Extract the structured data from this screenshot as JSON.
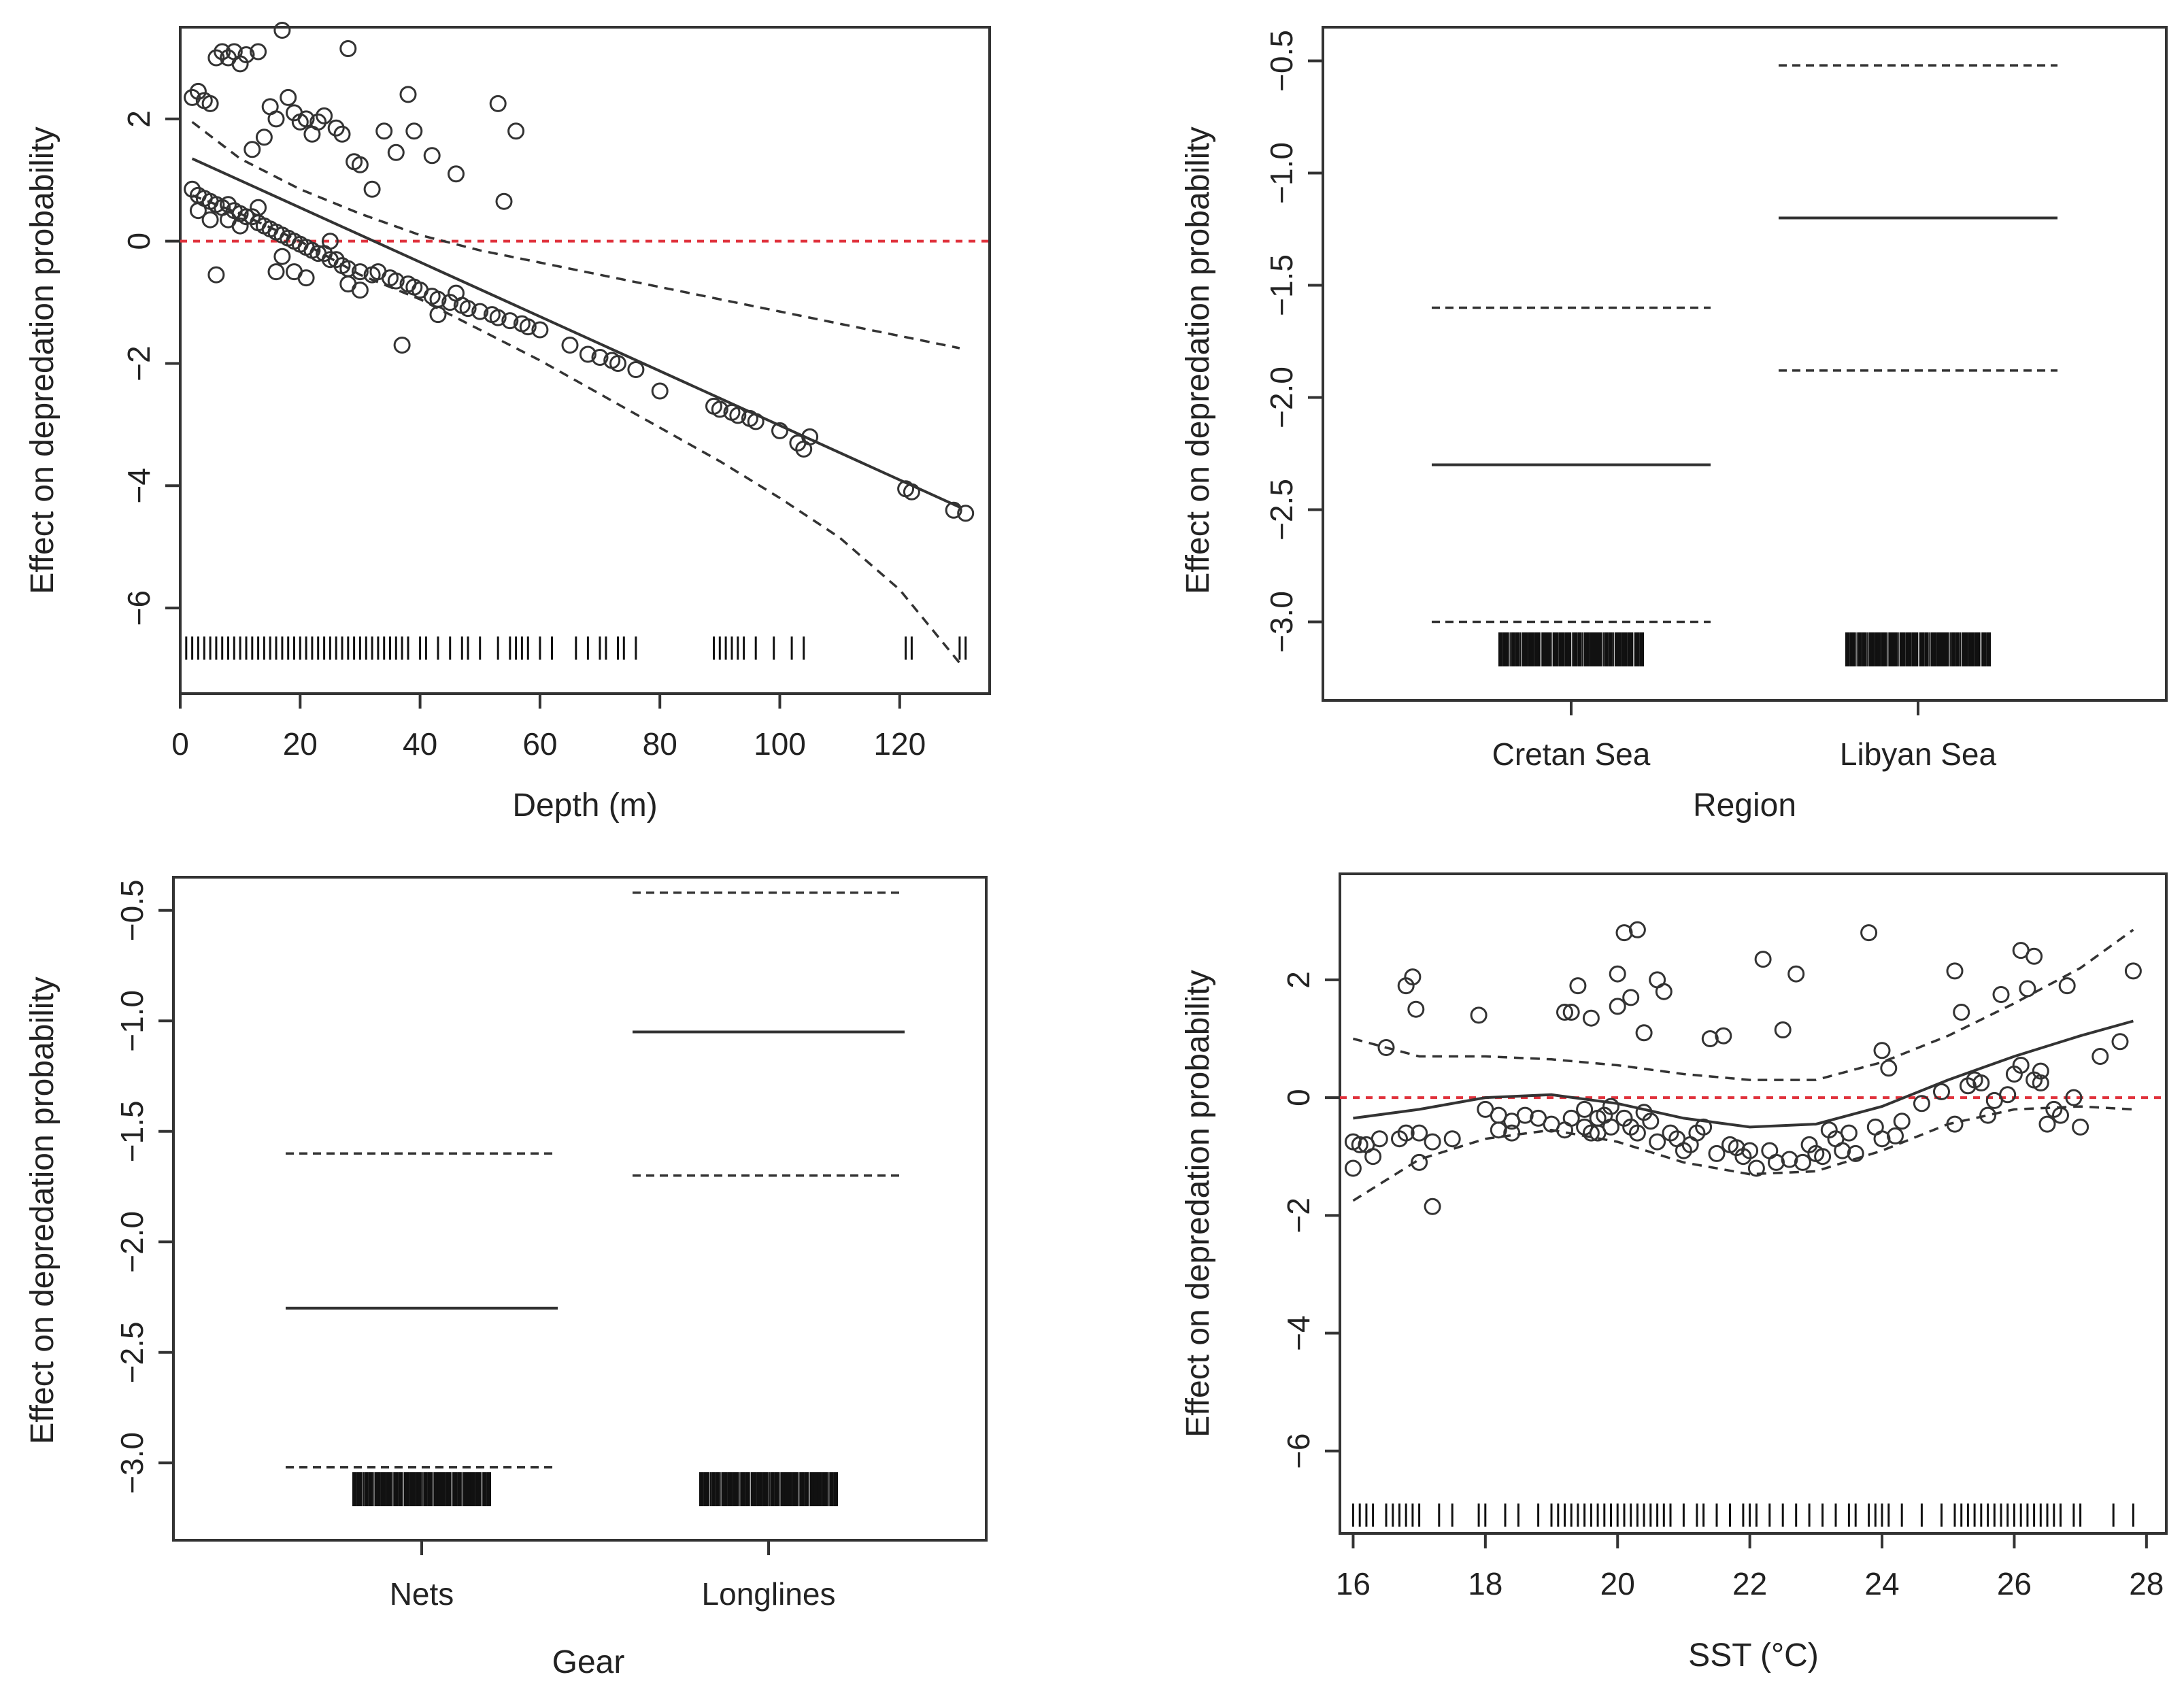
{
  "colors": {
    "ink": "#333333",
    "reference_line": "#e0323c",
    "background": "#ffffff"
  },
  "chart_data": [
    {
      "type": "scatter",
      "xlabel": "Depth (m)",
      "ylabel": "Effect on depredation probability",
      "xlim": [
        0,
        135
      ],
      "ylim": [
        -7.4,
        3.5
      ],
      "xticks": [
        "0",
        "20",
        "40",
        "60",
        "80",
        "100",
        "120"
      ],
      "yticks": [
        "−6",
        "−4",
        "−2",
        "0",
        "2"
      ],
      "reference_line": {
        "y": 0,
        "color": "#e0323c",
        "style": "dashed"
      },
      "fit": {
        "x": [
          2,
          130
        ],
        "y": [
          1.35,
          -4.35
        ]
      },
      "ci_upper": {
        "x": [
          2,
          10,
          20,
          30,
          40,
          50,
          60,
          70,
          80,
          90,
          100,
          110,
          120,
          130
        ],
        "y": [
          1.95,
          1.35,
          0.85,
          0.45,
          0.1,
          -0.15,
          -0.35,
          -0.55,
          -0.75,
          -0.95,
          -1.15,
          -1.35,
          -1.55,
          -1.75
        ]
      },
      "ci_lower": {
        "x": [
          2,
          10,
          20,
          30,
          40,
          50,
          60,
          70,
          80,
          90,
          100,
          110,
          120,
          130
        ],
        "y": [
          0.75,
          0.45,
          0.0,
          -0.55,
          -0.95,
          -1.45,
          -1.95,
          -2.5,
          -3.05,
          -3.6,
          -4.2,
          -4.85,
          -5.7,
          -6.9
        ]
      },
      "points": [
        [
          2,
          0.85
        ],
        [
          3,
          0.75
        ],
        [
          4,
          0.7
        ],
        [
          5,
          0.65
        ],
        [
          6,
          0.6
        ],
        [
          7,
          0.55
        ],
        [
          8,
          0.6
        ],
        [
          9,
          0.5
        ],
        [
          10,
          0.45
        ],
        [
          11,
          0.4
        ],
        [
          12,
          0.4
        ],
        [
          13,
          0.3
        ],
        [
          14,
          0.25
        ],
        [
          15,
          0.2
        ],
        [
          16,
          0.15
        ],
        [
          17,
          0.1
        ],
        [
          18,
          0.05
        ],
        [
          19,
          0.0
        ],
        [
          20,
          -0.05
        ],
        [
          21,
          -0.1
        ],
        [
          22,
          -0.15
        ],
        [
          23,
          -0.2
        ],
        [
          24,
          -0.2
        ],
        [
          25,
          -0.3
        ],
        [
          26,
          -0.3
        ],
        [
          27,
          -0.4
        ],
        [
          28,
          -0.45
        ],
        [
          30,
          -0.5
        ],
        [
          32,
          -0.55
        ],
        [
          33,
          -0.5
        ],
        [
          35,
          -0.6
        ],
        [
          36,
          -0.65
        ],
        [
          38,
          -0.7
        ],
        [
          39,
          -0.75
        ],
        [
          40,
          -0.8
        ],
        [
          42,
          -0.9
        ],
        [
          43,
          -0.95
        ],
        [
          45,
          -1.0
        ],
        [
          47,
          -1.05
        ],
        [
          48,
          -1.1
        ],
        [
          50,
          -1.15
        ],
        [
          52,
          -1.2
        ],
        [
          53,
          -1.25
        ],
        [
          55,
          -1.3
        ],
        [
          57,
          -1.35
        ],
        [
          58,
          -1.4
        ],
        [
          60,
          -1.45
        ],
        [
          65,
          -1.7
        ],
        [
          68,
          -1.85
        ],
        [
          70,
          -1.9
        ],
        [
          72,
          -1.95
        ],
        [
          73,
          -2.0
        ],
        [
          76,
          -2.1
        ],
        [
          80,
          -2.45
        ],
        [
          89,
          -2.7
        ],
        [
          90,
          -2.75
        ],
        [
          92,
          -2.8
        ],
        [
          93,
          -2.85
        ],
        [
          95,
          -2.9
        ],
        [
          96,
          -2.95
        ],
        [
          100,
          -3.1
        ],
        [
          103,
          -3.3
        ],
        [
          104,
          -3.4
        ],
        [
          105,
          -3.2
        ],
        [
          121,
          -4.05
        ],
        [
          122,
          -4.1
        ],
        [
          129,
          -4.4
        ],
        [
          131,
          -4.45
        ],
        [
          2,
          2.35
        ],
        [
          3,
          2.45
        ],
        [
          4,
          2.3
        ],
        [
          5,
          2.25
        ],
        [
          6,
          3.0
        ],
        [
          7,
          3.1
        ],
        [
          8,
          3.0
        ],
        [
          9,
          3.1
        ],
        [
          10,
          2.9
        ],
        [
          11,
          3.05
        ],
        [
          12,
          1.5
        ],
        [
          13,
          3.1
        ],
        [
          14,
          1.7
        ],
        [
          15,
          2.2
        ],
        [
          16,
          2.0
        ],
        [
          17,
          3.45
        ],
        [
          18,
          2.35
        ],
        [
          19,
          2.1
        ],
        [
          20,
          1.95
        ],
        [
          21,
          2.0
        ],
        [
          22,
          1.75
        ],
        [
          23,
          1.95
        ],
        [
          24,
          2.05
        ],
        [
          26,
          1.85
        ],
        [
          27,
          1.75
        ],
        [
          28,
          3.15
        ],
        [
          29,
          1.3
        ],
        [
          30,
          1.25
        ],
        [
          32,
          0.85
        ],
        [
          34,
          1.8
        ],
        [
          36,
          1.45
        ],
        [
          38,
          2.4
        ],
        [
          39,
          1.8
        ],
        [
          42,
          1.4
        ],
        [
          46,
          1.1
        ],
        [
          53,
          2.25
        ],
        [
          54,
          0.65
        ],
        [
          56,
          1.8
        ],
        [
          3,
          0.5
        ],
        [
          5,
          0.35
        ],
        [
          6,
          -0.55
        ],
        [
          8,
          0.35
        ],
        [
          10,
          0.25
        ],
        [
          13,
          0.55
        ],
        [
          16,
          -0.5
        ],
        [
          17,
          -0.25
        ],
        [
          19,
          -0.5
        ],
        [
          21,
          -0.6
        ],
        [
          25,
          0.0
        ],
        [
          28,
          -0.7
        ],
        [
          30,
          -0.8
        ],
        [
          37,
          -1.7
        ],
        [
          43,
          -1.2
        ],
        [
          46,
          -0.85
        ]
      ],
      "rug_x": [
        1,
        2,
        3,
        4,
        5,
        6,
        7,
        8,
        9,
        10,
        11,
        12,
        13,
        14,
        15,
        16,
        17,
        18,
        19,
        20,
        21,
        22,
        23,
        24,
        25,
        26,
        27,
        28,
        29,
        30,
        31,
        32,
        33,
        34,
        35,
        36,
        37,
        38,
        40,
        41,
        43,
        45,
        47,
        48,
        50,
        53,
        55,
        56,
        57,
        58,
        60,
        62,
        66,
        68,
        70,
        71,
        73,
        74,
        76,
        89,
        90,
        91,
        92,
        93,
        94,
        96,
        99,
        102,
        104,
        121,
        122,
        130,
        131
      ]
    },
    {
      "type": "line",
      "xlabel": "Region",
      "ylabel": "Effect on depredation probability",
      "categories": [
        "Cretan Sea",
        "Libyan Sea"
      ],
      "ylim": [
        -3.35,
        -0.35
      ],
      "yticks": [
        "−3.0",
        "−2.5",
        "−2.0",
        "−1.5",
        "−1.0",
        "−0.5"
      ],
      "estimates": [
        -2.3,
        -1.2
      ],
      "upper": [
        -1.6,
        -0.52
      ],
      "lower": [
        -3.0,
        -1.88
      ]
    },
    {
      "type": "line",
      "xlabel": "Gear",
      "ylabel": "Effect on depredation probability",
      "categories": [
        "Nets",
        "Longlines"
      ],
      "ylim": [
        -3.35,
        -0.35
      ],
      "yticks": [
        "−3.0",
        "−2.5",
        "−2.0",
        "−1.5",
        "−1.0",
        "−0.5"
      ],
      "estimates": [
        -2.3,
        -1.05
      ],
      "upper": [
        -1.6,
        -0.42
      ],
      "lower": [
        -3.02,
        -1.7
      ]
    },
    {
      "type": "scatter",
      "xlabel": "SST (°C)",
      "ylabel": "Effect on depredation probability",
      "xlim": [
        15.8,
        28.3
      ],
      "ylim": [
        -7.4,
        3.8
      ],
      "xticks": [
        "16",
        "18",
        "20",
        "22",
        "24",
        "26",
        "28"
      ],
      "yticks": [
        "−6",
        "−4",
        "−2",
        "0",
        "2"
      ],
      "reference_line": {
        "y": 0,
        "color": "#e0323c",
        "style": "dashed"
      },
      "fit": {
        "x": [
          16,
          17,
          18,
          19,
          20,
          21,
          22,
          23,
          24,
          25,
          26,
          27,
          27.8
        ],
        "y": [
          -0.35,
          -0.2,
          0.0,
          0.05,
          -0.1,
          -0.35,
          -0.5,
          -0.45,
          -0.15,
          0.3,
          0.7,
          1.05,
          1.3
        ]
      },
      "ci_upper": {
        "x": [
          16,
          17,
          18,
          19,
          20,
          21,
          22,
          23,
          24,
          25,
          26,
          27,
          27.8
        ],
        "y": [
          1.0,
          0.7,
          0.7,
          0.65,
          0.55,
          0.4,
          0.3,
          0.3,
          0.6,
          1.05,
          1.6,
          2.2,
          2.85
        ]
      },
      "ci_lower": {
        "x": [
          16,
          17,
          18,
          19,
          20,
          21,
          22,
          23,
          24,
          25,
          26,
          27,
          27.8
        ],
        "y": [
          -1.75,
          -1.05,
          -0.7,
          -0.55,
          -0.75,
          -1.1,
          -1.3,
          -1.25,
          -0.9,
          -0.45,
          -0.2,
          -0.15,
          -0.2
        ]
      },
      "points": [
        [
          16.0,
          -1.2
        ],
        [
          16.1,
          -0.8
        ],
        [
          16.3,
          -1.0
        ],
        [
          16.5,
          0.85
        ],
        [
          16.7,
          -0.7
        ],
        [
          16.8,
          1.9
        ],
        [
          16.9,
          2.05
        ],
        [
          16.95,
          1.5
        ],
        [
          17.0,
          -0.6
        ],
        [
          17.0,
          -1.1
        ],
        [
          17.2,
          -1.85
        ],
        [
          17.5,
          -0.7
        ],
        [
          17.9,
          1.4
        ],
        [
          18.0,
          -0.2
        ],
        [
          18.2,
          -0.55
        ],
        [
          18.4,
          -0.4
        ],
        [
          18.6,
          -0.3
        ],
        [
          18.8,
          -0.35
        ],
        [
          19.0,
          -0.45
        ],
        [
          19.2,
          1.45
        ],
        [
          19.3,
          1.45
        ],
        [
          19.4,
          1.9
        ],
        [
          19.5,
          -0.5
        ],
        [
          19.6,
          1.35
        ],
        [
          19.7,
          -0.6
        ],
        [
          19.8,
          -0.3
        ],
        [
          19.9,
          -0.5
        ],
        [
          20.0,
          1.55
        ],
        [
          20.0,
          2.1
        ],
        [
          20.1,
          2.8
        ],
        [
          20.2,
          1.7
        ],
        [
          20.3,
          -0.6
        ],
        [
          20.3,
          2.85
        ],
        [
          20.4,
          1.1
        ],
        [
          20.5,
          -0.4
        ],
        [
          20.6,
          2.0
        ],
        [
          20.7,
          1.8
        ],
        [
          20.9,
          -0.7
        ],
        [
          21.0,
          -0.9
        ],
        [
          21.2,
          -0.6
        ],
        [
          21.4,
          1.0
        ],
        [
          21.6,
          1.05
        ],
        [
          21.8,
          -0.85
        ],
        [
          22.0,
          -0.9
        ],
        [
          22.1,
          -1.2
        ],
        [
          22.2,
          2.35
        ],
        [
          22.4,
          -1.1
        ],
        [
          22.5,
          1.15
        ],
        [
          22.7,
          2.1
        ],
        [
          22.9,
          -0.8
        ],
        [
          23.1,
          -1.0
        ],
        [
          23.3,
          -0.7
        ],
        [
          23.5,
          -0.6
        ],
        [
          23.8,
          2.8
        ],
        [
          24.0,
          -0.7
        ],
        [
          24.0,
          0.8
        ],
        [
          24.1,
          0.5
        ],
        [
          24.3,
          -0.4
        ],
        [
          24.6,
          -0.1
        ],
        [
          24.9,
          0.1
        ],
        [
          25.1,
          2.15
        ],
        [
          25.2,
          1.45
        ],
        [
          25.3,
          0.2
        ],
        [
          25.5,
          0.25
        ],
        [
          25.7,
          -0.05
        ],
        [
          25.8,
          1.75
        ],
        [
          26.0,
          0.4
        ],
        [
          26.1,
          2.5
        ],
        [
          26.2,
          1.85
        ],
        [
          26.3,
          2.4
        ],
        [
          26.4,
          0.45
        ],
        [
          26.5,
          -0.45
        ],
        [
          26.7,
          -0.3
        ],
        [
          26.8,
          1.9
        ],
        [
          26.9,
          0.0
        ],
        [
          27.0,
          -0.5
        ],
        [
          27.3,
          0.7
        ],
        [
          27.6,
          0.95
        ],
        [
          27.8,
          2.15
        ],
        [
          16.0,
          -0.75
        ],
        [
          16.2,
          -0.8
        ],
        [
          16.4,
          -0.7
        ],
        [
          16.8,
          -0.6
        ],
        [
          17.2,
          -0.75
        ],
        [
          18.2,
          -0.3
        ],
        [
          18.4,
          -0.6
        ],
        [
          19.2,
          -0.55
        ],
        [
          19.3,
          -0.35
        ],
        [
          19.5,
          -0.2
        ],
        [
          19.6,
          -0.6
        ],
        [
          19.7,
          -0.35
        ],
        [
          19.9,
          -0.15
        ],
        [
          20.1,
          -0.35
        ],
        [
          20.2,
          -0.5
        ],
        [
          20.4,
          -0.25
        ],
        [
          20.6,
          -0.75
        ],
        [
          20.8,
          -0.6
        ],
        [
          21.1,
          -0.8
        ],
        [
          21.3,
          -0.5
        ],
        [
          21.5,
          -0.95
        ],
        [
          21.7,
          -0.8
        ],
        [
          21.9,
          -1.0
        ],
        [
          22.3,
          -0.9
        ],
        [
          22.6,
          -1.05
        ],
        [
          22.8,
          -1.1
        ],
        [
          23.0,
          -0.95
        ],
        [
          23.2,
          -0.55
        ],
        [
          23.4,
          -0.9
        ],
        [
          23.6,
          -0.95
        ],
        [
          23.9,
          -0.5
        ],
        [
          24.2,
          -0.65
        ],
        [
          25.1,
          -0.45
        ],
        [
          25.4,
          0.3
        ],
        [
          25.6,
          -0.3
        ],
        [
          25.9,
          0.05
        ],
        [
          26.1,
          0.55
        ],
        [
          26.3,
          0.3
        ],
        [
          26.4,
          0.25
        ],
        [
          26.6,
          -0.2
        ]
      ],
      "rug_x": [
        16.0,
        16.1,
        16.2,
        16.3,
        16.5,
        16.6,
        16.7,
        16.8,
        16.9,
        17.0,
        17.3,
        17.5,
        17.9,
        18.0,
        18.3,
        18.5,
        18.8,
        19.0,
        19.1,
        19.2,
        19.3,
        19.4,
        19.5,
        19.6,
        19.7,
        19.8,
        19.9,
        20.0,
        20.1,
        20.2,
        20.3,
        20.4,
        20.5,
        20.6,
        20.7,
        20.8,
        21.0,
        21.2,
        21.3,
        21.5,
        21.7,
        21.9,
        22.0,
        22.1,
        22.3,
        22.5,
        22.7,
        22.9,
        23.1,
        23.3,
        23.5,
        23.6,
        23.8,
        23.9,
        24.0,
        24.1,
        24.3,
        24.6,
        24.9,
        25.1,
        25.2,
        25.3,
        25.4,
        25.5,
        25.6,
        25.7,
        25.8,
        25.9,
        26.0,
        26.1,
        26.2,
        26.3,
        26.4,
        26.5,
        26.6,
        26.7,
        26.9,
        27.0,
        27.5,
        27.8
      ]
    }
  ]
}
